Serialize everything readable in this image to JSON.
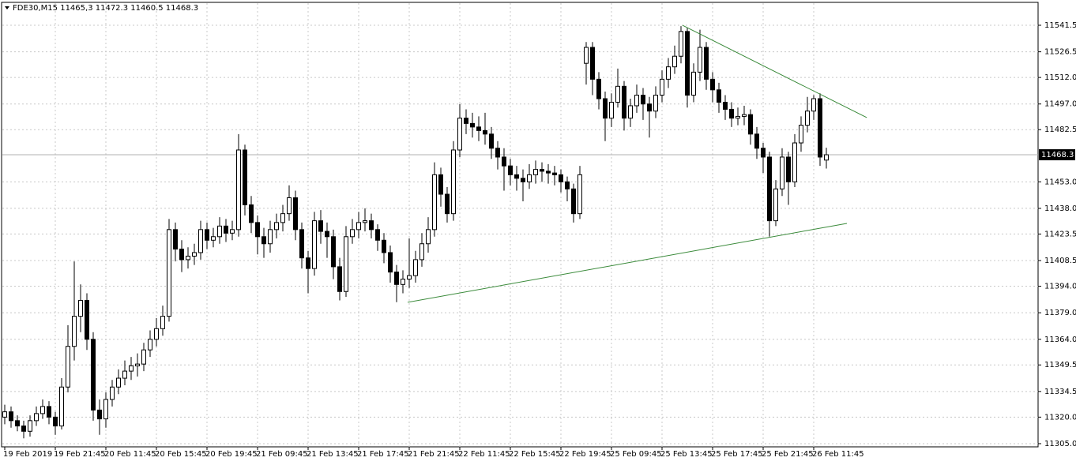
{
  "chart_data": {
    "type": "candlestick",
    "header": "FDE30,M15  11465,3 11472.3 11460.5 11468.3",
    "ylim": [
      11303.2,
      11554.0
    ],
    "yticks": [
      11541.5,
      11526.5,
      {
        "value": 11512,
        "label": "11512.0"
      },
      {
        "value": 11497,
        "label": "11497.0"
      },
      11482.5,
      {
        "value": 11453,
        "label": "11453.0"
      },
      {
        "value": 11438,
        "label": "11438.0"
      },
      11423.5,
      11408.5,
      {
        "value": 11394,
        "label": "11394.0"
      },
      {
        "value": 11379,
        "label": "11379.0"
      },
      {
        "value": 11364,
        "label": "11364.0"
      },
      11349.5,
      11334.5,
      {
        "value": 11320,
        "label": "11320.0"
      },
      {
        "value": 11305,
        "label": "11305.0"
      }
    ],
    "xticks": [
      {
        "value": 0,
        "label": "19 Feb 2019"
      },
      {
        "value": 8,
        "label": "19 Feb 21:45"
      },
      {
        "value": 16,
        "label": "20 Feb 11:45"
      },
      {
        "value": 24,
        "label": "20 Feb 15:45"
      },
      {
        "value": 32,
        "label": "20 Feb 19:45"
      },
      {
        "value": 40,
        "label": "21 Feb 09:45"
      },
      {
        "value": 48,
        "label": "21 Feb 13:45"
      },
      {
        "value": 56,
        "label": "21 Feb 17:45"
      },
      {
        "value": 64,
        "label": "21 Feb 21:45"
      },
      {
        "value": 72,
        "label": "22 Feb 11:45"
      },
      {
        "value": 80,
        "label": "22 Feb 15:45"
      },
      {
        "value": 88,
        "label": "22 Feb 19:45"
      },
      {
        "value": 96,
        "label": "25 Feb 09:45"
      },
      {
        "value": 104,
        "label": "25 Feb 13:45"
      },
      {
        "value": 112,
        "label": "25 Feb 17:45"
      },
      {
        "value": 120,
        "label": "25 Feb 21:45"
      },
      {
        "value": 128,
        "label": "26 Feb 11:45"
      }
    ],
    "grid": true,
    "open": [
      11320,
      11323,
      11318,
      11315,
      11312,
      11318,
      11322,
      11326,
      11320,
      11315,
      11337,
      11360,
      11377,
      11386,
      11364,
      11324,
      11319,
      11330,
      11337,
      11342,
      11346,
      11349,
      11350,
      11358,
      11364,
      11370,
      11377,
      11426,
      11415,
      11409,
      11411,
      11413,
      11426,
      11420,
      11422,
      11428,
      11424,
      11426,
      11471,
      11440,
      11430,
      11422,
      11418,
      11426,
      11430,
      11435,
      11444,
      11426,
      11410,
      11404,
      11431,
      11425,
      11422,
      11405,
      11391,
      11422,
      11426,
      11430,
      11431,
      11426,
      11420,
      11413,
      11402,
      11395,
      11398,
      11400,
      11409,
      11418,
      11426,
      11457,
      11446,
      11435,
      11471,
      11489,
      11486,
      11484,
      11482,
      11480,
      11472,
      11467,
      11462,
      11457,
      11455,
      11453,
      11457,
      11460,
      11459,
      11458,
      11457,
      11453,
      11449,
      11435,
      11520,
      11529,
      11511,
      11500,
      11489,
      11498,
      11507,
      11489,
      11496,
      11502,
      11497,
      11493,
      11502,
      11511,
      11518,
      11524,
      11538,
      11502,
      11515,
      11529,
      11511,
      11505,
      11498,
      11494,
      11489,
      11490,
      11491,
      11480,
      11472,
      11467,
      11431,
      11449,
      11467,
      11453,
      11475,
      11485,
      11493,
      11500,
      11465.3
    ],
    "high": [
      11327,
      11326,
      11321,
      11318,
      11321,
      11326,
      11330,
      11329,
      11323,
      11342,
      11372,
      11408,
      11395,
      11390,
      11368,
      11330,
      11334,
      11341,
      11347,
      11352,
      11354,
      11356,
      11362,
      11369,
      11376,
      11383,
      11432,
      11430,
      11420,
      11416,
      11418,
      11431,
      11430,
      11427,
      11433,
      11432,
      11431,
      11480,
      11474,
      11445,
      11434,
      11427,
      11431,
      11435,
      11440,
      11451,
      11448,
      11430,
      11414,
      11436,
      11437,
      11430,
      11426,
      11410,
      11428,
      11432,
      11436,
      11438,
      11435,
      11429,
      11424,
      11417,
      11406,
      11403,
      11421,
      11414,
      11424,
      11433,
      11464,
      11461,
      11450,
      11476,
      11497,
      11494,
      11492,
      11490,
      11492,
      11484,
      11476,
      11472,
      11466,
      11462,
      11460,
      11463,
      11465,
      11464,
      11463,
      11462,
      11460,
      11456,
      11452,
      11462,
      11532,
      11532,
      11515,
      11504,
      11503,
      11517,
      11510,
      11500,
      11508,
      11506,
      11501,
      11507,
      11516,
      11523,
      11530,
      11541,
      11540,
      11520,
      11539,
      11532,
      11515,
      11509,
      11502,
      11498,
      11495,
      11496,
      11494,
      11484,
      11475,
      11470,
      11454,
      11472,
      11470,
      11480,
      11490,
      11501,
      11502,
      11503,
      11472.3
    ],
    "low": [
      11316,
      11314,
      11312,
      11308,
      11309,
      11315,
      11319,
      11316,
      11310,
      11313,
      11334,
      11352,
      11368,
      11358,
      11318,
      11310,
      11314,
      11326,
      11333,
      11338,
      11341,
      11343,
      11346,
      11354,
      11360,
      11366,
      11374,
      11408,
      11402,
      11404,
      11406,
      11409,
      11415,
      11416,
      11418,
      11419,
      11420,
      11422,
      11434,
      11424,
      11412,
      11410,
      11413,
      11421,
      11425,
      11431,
      11420,
      11404,
      11390,
      11400,
      11418,
      11410,
      11398,
      11386,
      11388,
      11418,
      11421,
      11425,
      11421,
      11414,
      11407,
      11396,
      11385,
      11390,
      11393,
      11396,
      11405,
      11413,
      11422,
      11439,
      11430,
      11431,
      11467,
      11480,
      11478,
      11476,
      11474,
      11466,
      11460,
      11448,
      11451,
      11448,
      11442,
      11449,
      11452,
      11453,
      11452,
      11451,
      11447,
      11442,
      11430,
      11432,
      11508,
      11502,
      11494,
      11476,
      11484,
      11495,
      11482,
      11484,
      11492,
      11488,
      11478,
      11489,
      11498,
      11506,
      11514,
      11520,
      11495,
      11498,
      11510,
      11505,
      11498,
      11492,
      11488,
      11484,
      11485,
      11485,
      11474,
      11466,
      11458,
      11422,
      11428,
      11445,
      11440,
      11450,
      11470,
      11481,
      11488,
      11462,
      11460.5
    ],
    "close": [
      11323,
      11318,
      11315,
      11312,
      11318,
      11322,
      11326,
      11320,
      11315,
      11337,
      11360,
      11377,
      11386,
      11364,
      11324,
      11319,
      11330,
      11337,
      11342,
      11346,
      11349,
      11350,
      11358,
      11364,
      11370,
      11377,
      11426,
      11415,
      11409,
      11411,
      11413,
      11426,
      11420,
      11422,
      11428,
      11424,
      11426,
      11471,
      11440,
      11430,
      11422,
      11418,
      11426,
      11430,
      11435,
      11444,
      11426,
      11410,
      11404,
      11431,
      11425,
      11422,
      11405,
      11391,
      11422,
      11426,
      11430,
      11431,
      11426,
      11420,
      11413,
      11402,
      11395,
      11398,
      11400,
      11409,
      11418,
      11426,
      11457,
      11446,
      11435,
      11471,
      11489,
      11486,
      11484,
      11482,
      11480,
      11472,
      11467,
      11462,
      11457,
      11455,
      11453,
      11457,
      11460,
      11459,
      11458,
      11457,
      11453,
      11449,
      11435,
      11457,
      11529,
      11511,
      11500,
      11489,
      11498,
      11507,
      11489,
      11496,
      11502,
      11497,
      11493,
      11502,
      11511,
      11518,
      11524,
      11538,
      11502,
      11515,
      11529,
      11511,
      11505,
      11498,
      11494,
      11489,
      11490,
      11491,
      11480,
      11472,
      11467,
      11431,
      11449,
      11467,
      11453,
      11475,
      11485,
      11493,
      11500,
      11467,
      11468.3
    ],
    "trendlines": [
      {
        "x": [
          63.75,
          133.25
        ],
        "y": [
          11384.9,
          11429.5
        ],
        "color": "#3a8a3a"
      },
      {
        "x": [
          107.25,
          136.4
        ],
        "y": [
          11541.5,
          11489.3
        ],
        "color": "#3a8a3a"
      }
    ]
  }
}
